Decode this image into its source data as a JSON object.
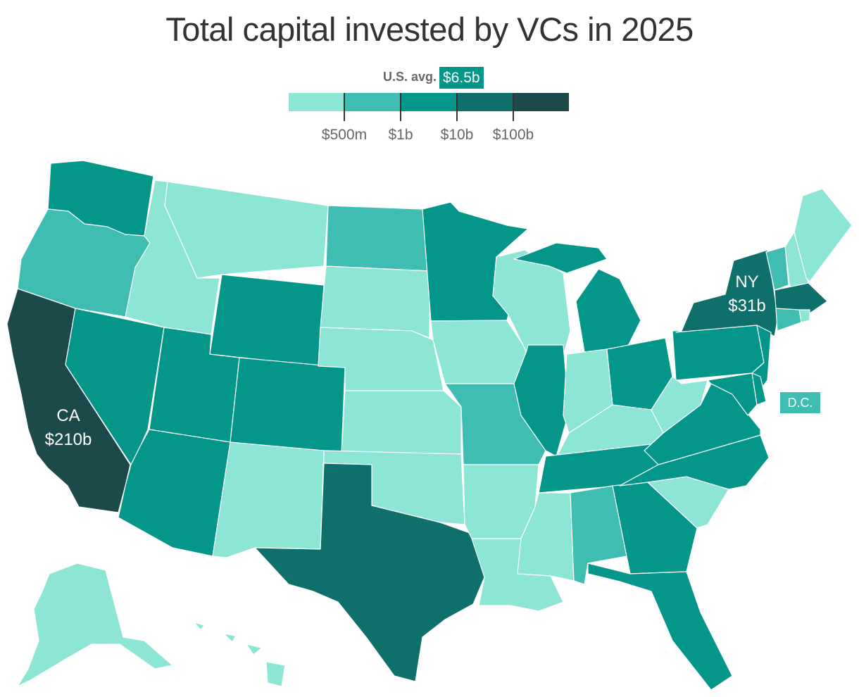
{
  "title": "Total capital invested by VCs in 2025",
  "legend": {
    "average_label": "U.S. avg.",
    "average_value": "$6.5b",
    "bins": [
      {
        "color": "#8de5d6"
      },
      {
        "color": "#3fbdb0"
      },
      {
        "color": "#05968a"
      },
      {
        "color": "#0f6f6a"
      },
      {
        "color": "#1c4a4b"
      }
    ],
    "ticks": [
      "$500m",
      "$1b",
      "$10b",
      "$100b"
    ]
  },
  "colors": {
    "very_light": "#8de5d6",
    "light": "#3fbdb0",
    "medium": "#05968a",
    "dark": "#0f6f6a",
    "darkest": "#1c4a4b",
    "border": "#ffffff"
  },
  "states": [
    {
      "name": "WA",
      "bin": 2
    },
    {
      "name": "OR",
      "bin": 1
    },
    {
      "name": "CA",
      "bin": 4
    },
    {
      "name": "NV",
      "bin": 2
    },
    {
      "name": "ID",
      "bin": 0
    },
    {
      "name": "MT",
      "bin": 0
    },
    {
      "name": "WY",
      "bin": 2
    },
    {
      "name": "UT",
      "bin": 2
    },
    {
      "name": "AZ",
      "bin": 2
    },
    {
      "name": "CO",
      "bin": 2
    },
    {
      "name": "NM",
      "bin": 0
    },
    {
      "name": "ND",
      "bin": 1
    },
    {
      "name": "SD",
      "bin": 0
    },
    {
      "name": "NE",
      "bin": 0
    },
    {
      "name": "KS",
      "bin": 0
    },
    {
      "name": "OK",
      "bin": 0
    },
    {
      "name": "TX",
      "bin": 3
    },
    {
      "name": "MN",
      "bin": 2
    },
    {
      "name": "IA",
      "bin": 0
    },
    {
      "name": "MO",
      "bin": 1
    },
    {
      "name": "AR",
      "bin": 0
    },
    {
      "name": "LA",
      "bin": 0
    },
    {
      "name": "WI",
      "bin": 0
    },
    {
      "name": "IL",
      "bin": 2
    },
    {
      "name": "MI",
      "bin": 2
    },
    {
      "name": "IN",
      "bin": 0
    },
    {
      "name": "OH",
      "bin": 2
    },
    {
      "name": "KY",
      "bin": 0
    },
    {
      "name": "TN",
      "bin": 2
    },
    {
      "name": "MS",
      "bin": 0
    },
    {
      "name": "AL",
      "bin": 1
    },
    {
      "name": "GA",
      "bin": 2
    },
    {
      "name": "FL",
      "bin": 2
    },
    {
      "name": "SC",
      "bin": 0
    },
    {
      "name": "NC",
      "bin": 2
    },
    {
      "name": "VA",
      "bin": 2
    },
    {
      "name": "WV",
      "bin": 0
    },
    {
      "name": "PA",
      "bin": 2
    },
    {
      "name": "NY",
      "bin": 3
    },
    {
      "name": "VT",
      "bin": 1
    },
    {
      "name": "NH",
      "bin": 0
    },
    {
      "name": "ME",
      "bin": 0
    },
    {
      "name": "MA",
      "bin": 3
    },
    {
      "name": "RI",
      "bin": 0
    },
    {
      "name": "CT",
      "bin": 1
    },
    {
      "name": "NJ",
      "bin": 2
    },
    {
      "name": "DE",
      "bin": 2
    },
    {
      "name": "MD",
      "bin": 2
    },
    {
      "name": "DC",
      "bin": 1
    },
    {
      "name": "AK",
      "bin": 0
    },
    {
      "name": "HI",
      "bin": 0
    }
  ],
  "callouts": [
    {
      "state": "CA",
      "abbr": "CA",
      "value": "$210b"
    },
    {
      "state": "NY",
      "abbr": "NY",
      "value": "$31b"
    }
  ],
  "dc_label": "D.C."
}
